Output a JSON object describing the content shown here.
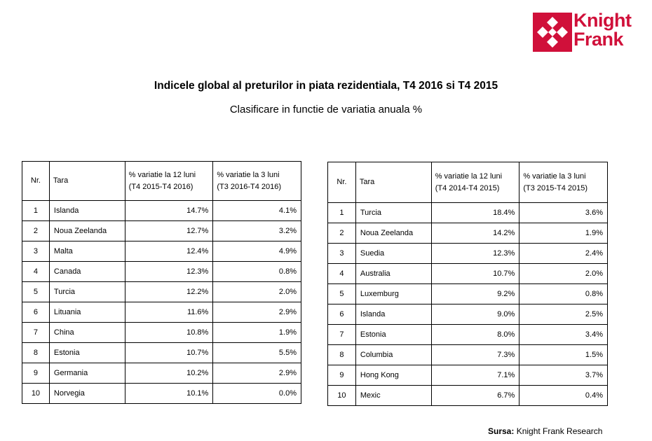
{
  "logo": {
    "line1": "Knight",
    "line2": "Frank",
    "color": "#d0103a"
  },
  "title": "Indicele global al preturilor in piata rezidentiala, T4 2016 si T4 2015",
  "subtitle": "Clasificare in functie de variatia anuala %",
  "table_left": {
    "headers": {
      "nr": "Nr.",
      "tara": "Tara",
      "v12_line1": "% variatie la 12 luni",
      "v12_line2": "(T4 2015-T4 2016)",
      "v3_line1": "% variatie la 3 luni",
      "v3_line2": "(T3 2016-T4 2016)"
    },
    "rows": [
      {
        "nr": "1",
        "tara": "Islanda",
        "v12": "14.7%",
        "v3": "4.1%"
      },
      {
        "nr": "2",
        "tara": "Noua Zeelanda",
        "v12": "12.7%",
        "v3": "3.2%"
      },
      {
        "nr": "3",
        "tara": "Malta",
        "v12": "12.4%",
        "v3": "4.9%"
      },
      {
        "nr": "4",
        "tara": "Canada",
        "v12": "12.3%",
        "v3": "0.8%"
      },
      {
        "nr": "5",
        "tara": "Turcia",
        "v12": "12.2%",
        "v3": "2.0%"
      },
      {
        "nr": "6",
        "tara": "Lituania",
        "v12": "11.6%",
        "v3": "2.9%"
      },
      {
        "nr": "7",
        "tara": "China",
        "v12": "10.8%",
        "v3": "1.9%"
      },
      {
        "nr": "8",
        "tara": "Estonia",
        "v12": "10.7%",
        "v3": "5.5%"
      },
      {
        "nr": "9",
        "tara": "Germania",
        "v12": "10.2%",
        "v3": "2.9%"
      },
      {
        "nr": "10",
        "tara": "Norvegia",
        "v12": "10.1%",
        "v3": "0.0%"
      }
    ]
  },
  "table_right": {
    "headers": {
      "nr": "Nr.",
      "tara": "Tara",
      "v12_line1": "% variatie la 12 luni",
      "v12_line2": "(T4 2014-T4 2015)",
      "v3_line1": "% variatie la 3 luni",
      "v3_line2": "(T3 2015-T4 2015)"
    },
    "rows": [
      {
        "nr": "1",
        "tara": "Turcia",
        "v12": "18.4%",
        "v3": "3.6%"
      },
      {
        "nr": "2",
        "tara": "Noua Zeelanda",
        "v12": "14.2%",
        "v3": "1.9%"
      },
      {
        "nr": "3",
        "tara": "Suedia",
        "v12": "12.3%",
        "v3": "2.4%"
      },
      {
        "nr": "4",
        "tara": "Australia",
        "v12": "10.7%",
        "v3": "2.0%"
      },
      {
        "nr": "5",
        "tara": "Luxemburg",
        "v12": "9.2%",
        "v3": "0.8%"
      },
      {
        "nr": "6",
        "tara": "Islanda",
        "v12": "9.0%",
        "v3": "2.5%"
      },
      {
        "nr": "7",
        "tara": "Estonia",
        "v12": "8.0%",
        "v3": "3.4%"
      },
      {
        "nr": "8",
        "tara": "Columbia",
        "v12": "7.3%",
        "v3": "1.5%"
      },
      {
        "nr": "9",
        "tara": "Hong Kong",
        "v12": "7.1%",
        "v3": "3.7%"
      },
      {
        "nr": "10",
        "tara": "Mexic",
        "v12": "6.7%",
        "v3": "0.4%"
      }
    ]
  },
  "source": {
    "label": "Sursa:",
    "text": " Knight Frank Research"
  }
}
